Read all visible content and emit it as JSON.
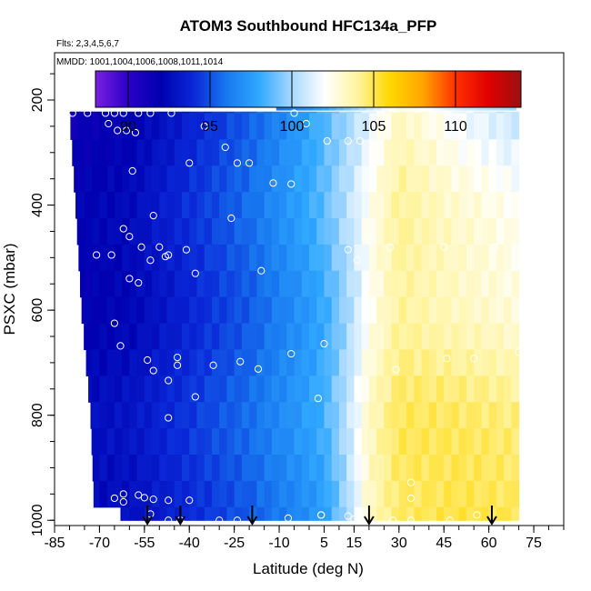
{
  "chart_data": {
    "type": "heatmap",
    "title": "ATOM3 Southbound HFC134a_PFP",
    "flights_label": "Flts: 2,3,4,5,6,7",
    "dates_label": "MMDD: 1001,1004,1006,1008,1011,1014",
    "xlabel": "Latitude (deg N)",
    "ylabel": "PSXC (mbar)",
    "xlim": [
      -85,
      85
    ],
    "ylim": [
      1010,
      110
    ],
    "y_reversed": true,
    "x_ticks": [
      -85,
      -70,
      -55,
      -40,
      -25,
      -10,
      5,
      15,
      30,
      45,
      60,
      75
    ],
    "y_ticks": [
      200,
      400,
      600,
      800,
      1000
    ],
    "colorbar": {
      "range": [
        88,
        114
      ],
      "ticks": [
        90,
        95,
        100,
        105,
        110
      ],
      "colors": [
        "#7a1fe0",
        "#2a00c8",
        "#0000b0",
        "#0a28d8",
        "#1878f0",
        "#30a8ff",
        "#a6d8ff",
        "#ffffff",
        "#fff4a0",
        "#ffd700",
        "#ffa500",
        "#ff3000",
        "#e00000",
        "#9c1010"
      ]
    },
    "field": {
      "lat_min": -80,
      "lat_max": 70,
      "lat_step": 2.5,
      "p_levels": [
        200,
        250,
        300,
        350,
        400,
        450,
        500,
        550,
        600,
        650,
        700,
        750,
        800,
        850,
        900,
        950,
        1000
      ],
      "upper_layer_lat_min": -11,
      "upper_layer_p": [
        175,
        220
      ],
      "surface_edge": [
        {
          "p": 225,
          "lat": -80
        },
        {
          "p": 400,
          "lat": -78
        },
        {
          "p": 600,
          "lat": -76
        },
        {
          "p": 800,
          "lat": -73
        },
        {
          "p": 950,
          "lat": -72
        },
        {
          "p": 1000,
          "lat": -63
        }
      ],
      "value_profile_near_surface": [
        {
          "lat": -80,
          "value": 92.5
        },
        {
          "lat": -60,
          "value": 93.0
        },
        {
          "lat": -40,
          "value": 94.2
        },
        {
          "lat": -20,
          "value": 95.5
        },
        {
          "lat": -5,
          "value": 96.8
        },
        {
          "lat": 5,
          "value": 97.8
        },
        {
          "lat": 12,
          "value": 100.0
        },
        {
          "lat": 20,
          "value": 103.5
        },
        {
          "lat": 30,
          "value": 105.0
        },
        {
          "lat": 50,
          "value": 105.4
        },
        {
          "lat": 70,
          "value": 105.2
        }
      ],
      "value_profile_upper": [
        {
          "lat": -80,
          "value": 91.5
        },
        {
          "lat": -60,
          "value": 92.0
        },
        {
          "lat": -40,
          "value": 93.8
        },
        {
          "lat": -20,
          "value": 95.5
        },
        {
          "lat": 0,
          "value": 98.0
        },
        {
          "lat": 15,
          "value": 100.5
        },
        {
          "lat": 30,
          "value": 103.5
        },
        {
          "lat": 50,
          "value": 101.8
        },
        {
          "lat": 70,
          "value": 100.8
        }
      ]
    },
    "samples": [
      {
        "lat": -79,
        "p": 225
      },
      {
        "lat": -74,
        "p": 225
      },
      {
        "lat": -68,
        "p": 225
      },
      {
        "lat": -65,
        "p": 225
      },
      {
        "lat": -62,
        "p": 225
      },
      {
        "lat": -57,
        "p": 225
      },
      {
        "lat": -53,
        "p": 225
      },
      {
        "lat": -46,
        "p": 225
      },
      {
        "lat": -67,
        "p": 245
      },
      {
        "lat": -64,
        "p": 258
      },
      {
        "lat": -61,
        "p": 258
      },
      {
        "lat": -58,
        "p": 262
      },
      {
        "lat": -35,
        "p": 250
      },
      {
        "lat": -28,
        "p": 290
      },
      {
        "lat": -40,
        "p": 320
      },
      {
        "lat": -24,
        "p": 320
      },
      {
        "lat": -20,
        "p": 320
      },
      {
        "lat": -12,
        "p": 200
      },
      {
        "lat": -5,
        "p": 225
      },
      {
        "lat": -1,
        "p": 245
      },
      {
        "lat": 6,
        "p": 278
      },
      {
        "lat": 13,
        "p": 278
      },
      {
        "lat": 17,
        "p": 278
      },
      {
        "lat": 24,
        "p": 200
      },
      {
        "lat": 67,
        "p": 200
      },
      {
        "lat": -59,
        "p": 335
      },
      {
        "lat": -12,
        "p": 358
      },
      {
        "lat": -6,
        "p": 360
      },
      {
        "lat": -26,
        "p": 425
      },
      {
        "lat": -62,
        "p": 445
      },
      {
        "lat": -60,
        "p": 460
      },
      {
        "lat": -52,
        "p": 420
      },
      {
        "lat": -56,
        "p": 480
      },
      {
        "lat": -50,
        "p": 480
      },
      {
        "lat": -48,
        "p": 498
      },
      {
        "lat": -47,
        "p": 495
      },
      {
        "lat": -71,
        "p": 495
      },
      {
        "lat": -66,
        "p": 495
      },
      {
        "lat": -60,
        "p": 540
      },
      {
        "lat": -57,
        "p": 548
      },
      {
        "lat": -41,
        "p": 485
      },
      {
        "lat": -53,
        "p": 505
      },
      {
        "lat": -38,
        "p": 530
      },
      {
        "lat": -16,
        "p": 525
      },
      {
        "lat": 13,
        "p": 485
      },
      {
        "lat": 16,
        "p": 505
      },
      {
        "lat": 20,
        "p": 465
      },
      {
        "lat": 27,
        "p": 480
      },
      {
        "lat": 45,
        "p": 480
      },
      {
        "lat": 62,
        "p": 480
      },
      {
        "lat": -65,
        "p": 625
      },
      {
        "lat": -63,
        "p": 668
      },
      {
        "lat": -54,
        "p": 695
      },
      {
        "lat": -52,
        "p": 715
      },
      {
        "lat": -44,
        "p": 690
      },
      {
        "lat": -44,
        "p": 705
      },
      {
        "lat": -32,
        "p": 705
      },
      {
        "lat": -23,
        "p": 698
      },
      {
        "lat": -17,
        "p": 712
      },
      {
        "lat": -6,
        "p": 683
      },
      {
        "lat": 5,
        "p": 664
      },
      {
        "lat": 29,
        "p": 713
      },
      {
        "lat": 46,
        "p": 692
      },
      {
        "lat": 55,
        "p": 692
      },
      {
        "lat": 70,
        "p": 680
      },
      {
        "lat": -47,
        "p": 734
      },
      {
        "lat": -38,
        "p": 765
      },
      {
        "lat": -47,
        "p": 805
      },
      {
        "lat": 3,
        "p": 768
      },
      {
        "lat": -62,
        "p": 950
      },
      {
        "lat": -65,
        "p": 958
      },
      {
        "lat": -62,
        "p": 965
      },
      {
        "lat": -57,
        "p": 952
      },
      {
        "lat": -55,
        "p": 957
      },
      {
        "lat": -52,
        "p": 960
      },
      {
        "lat": -47,
        "p": 962
      },
      {
        "lat": -40,
        "p": 962
      },
      {
        "lat": -53,
        "p": 988
      },
      {
        "lat": -47,
        "p": 1000
      },
      {
        "lat": -43,
        "p": 1000
      },
      {
        "lat": -30,
        "p": 1000
      },
      {
        "lat": -24,
        "p": 1000
      },
      {
        "lat": -7,
        "p": 996
      },
      {
        "lat": 4,
        "p": 990
      },
      {
        "lat": 4,
        "p": 990
      },
      {
        "lat": 13,
        "p": 992
      },
      {
        "lat": 15,
        "p": 998
      },
      {
        "lat": 28,
        "p": 1000
      },
      {
        "lat": 34,
        "p": 1000
      },
      {
        "lat": 34,
        "p": 928
      },
      {
        "lat": 34,
        "p": 958
      },
      {
        "lat": 47,
        "p": 1000
      },
      {
        "lat": 56,
        "p": 990
      }
    ],
    "arrows_lat": [
      -54,
      -43,
      -19,
      20,
      61
    ]
  }
}
